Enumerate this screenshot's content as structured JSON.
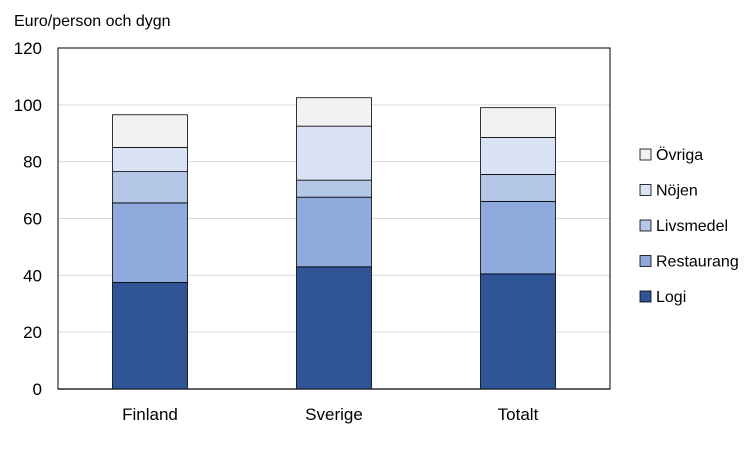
{
  "chart_data": {
    "type": "bar",
    "stacked": true,
    "ylabel": "Euro/person och dygn",
    "categories": [
      "Finland",
      "Sverige",
      "Totalt"
    ],
    "ylim": [
      0,
      120
    ],
    "yticks": [
      0,
      20,
      40,
      60,
      80,
      100,
      120
    ],
    "grid": true,
    "legend": "right",
    "series": [
      {
        "name": "Logi",
        "color": "#2F5597",
        "values": [
          37.5,
          43.0,
          40.5
        ]
      },
      {
        "name": "Restaurang",
        "color": "#8FAADC",
        "values": [
          28.0,
          24.5,
          25.5
        ]
      },
      {
        "name": "Livsmedel",
        "color": "#B4C7E7",
        "values": [
          11.0,
          6.0,
          9.5
        ]
      },
      {
        "name": "Nöjen",
        "color": "#DAE3F3",
        "values": [
          8.5,
          19.0,
          13.0
        ]
      },
      {
        "name": "Övriga",
        "color": "#F2F2F2",
        "values": [
          11.5,
          10.0,
          10.5
        ]
      }
    ]
  }
}
